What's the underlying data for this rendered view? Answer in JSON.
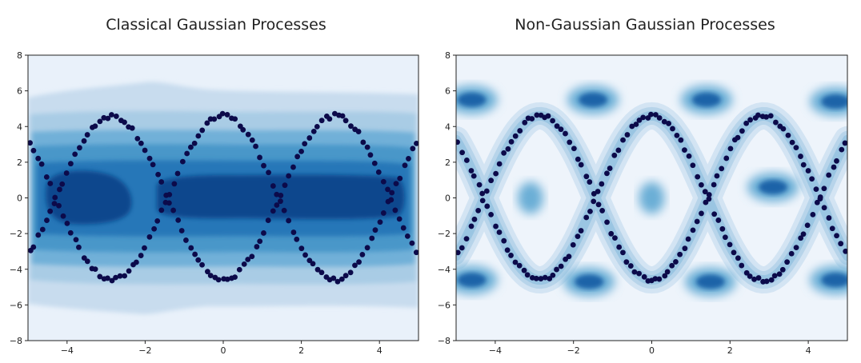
{
  "chart_data": [
    {
      "type": "scatter",
      "title": "Classical Gaussian Processes",
      "xlim": [
        -5,
        5
      ],
      "ylim": [
        -8,
        8
      ],
      "xticks": [
        -4,
        -2,
        0,
        2,
        4
      ],
      "yticks": [
        -8,
        -6,
        -4,
        -2,
        0,
        2,
        4,
        6,
        8
      ],
      "xtick_labels": [
        "−4",
        "−2",
        "0",
        "2",
        "4"
      ],
      "ytick_labels": [
        "−8",
        "−6",
        "−4",
        "−2",
        "0",
        "2",
        "4",
        "6",
        "8"
      ],
      "background": "density contour (Blues), single broad band centred at y=0",
      "point_color": "#0c0a4a",
      "series": [
        {
          "amplitude": 4.6,
          "function": "cos(1.1x)"
        },
        {
          "amplitude": -4.6,
          "function": "-cos(1.1x)"
        }
      ]
    },
    {
      "type": "scatter",
      "title": "Non-Gaussian Gaussian Processes",
      "xlim": [
        -5,
        5
      ],
      "ylim": [
        -8,
        8
      ],
      "xticks": [
        -4,
        -2,
        0,
        2,
        4
      ],
      "yticks": [
        -8,
        -6,
        -4,
        -2,
        0,
        2,
        4,
        6,
        8
      ],
      "xtick_labels": [
        "−4",
        "−2",
        "0",
        "2",
        "4"
      ],
      "ytick_labels": [
        "−8",
        "−6",
        "−4",
        "−2",
        "0",
        "2",
        "4",
        "6",
        "8"
      ],
      "background": "density contour (Blues), concentrated along the two cosine curves",
      "point_color": "#0c0a4a",
      "series": [
        {
          "amplitude": 4.6,
          "function": "cos(1.1x)"
        },
        {
          "amplitude": -4.6,
          "function": "-cos(1.1x)"
        }
      ]
    }
  ]
}
